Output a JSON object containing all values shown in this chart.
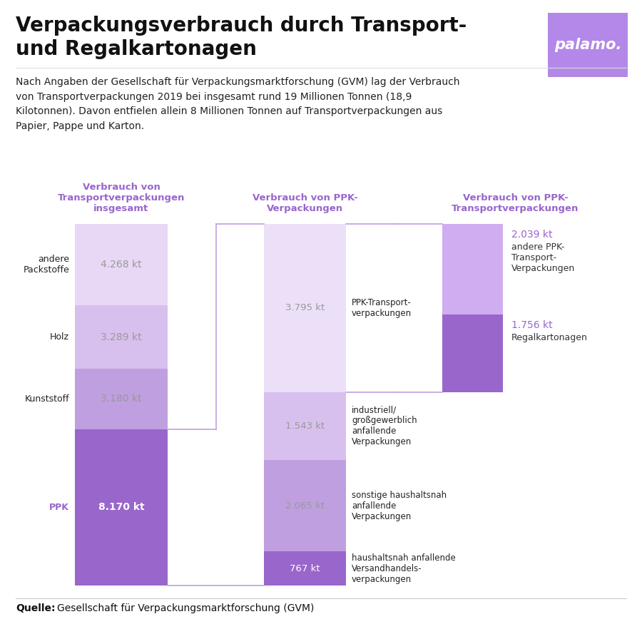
{
  "title_line1": "Verpackungsverbrauch durch Transport-",
  "title_line2": "und Regalkartonagen",
  "logo_text": "palamo.",
  "logo_bg": "#b388e8",
  "description": "Nach Angaben der Gesellschaft für Verpackungsmarktforschung (GVM) lag der Verbrauch\nvon Transportverpackungen 2019 bei insgesamt rund 19 Millionen Tonnen (18,9\nKilotonnen). Davon entfielen allein 8 Millionen Tonnen auf Transportverpackungen aus\nPapier, Pappe und Karton.",
  "source": "Gesellschaft für Verpackungsmarktforschung (GVM)",
  "col1_title": "Verbrauch von\nTransportverpackungen\ninsgesamt",
  "col2_title": "Verbrauch von PPK-\nVerpackungen",
  "col3_title": "Verbrauch von PPK-\nTransportverpackungen",
  "bar1_segments_top_to_bottom": [
    {
      "label": "andere\nPackstoffe",
      "value": 4.268,
      "color": "#e8d8f5",
      "text": "4.268 kt",
      "text_color": "#999999"
    },
    {
      "label": "Holz",
      "value": 3.289,
      "color": "#d8c0ee",
      "text": "3.289 kt",
      "text_color": "#999999"
    },
    {
      "label": "Kunststoff",
      "value": 3.18,
      "color": "#bf9fe0",
      "text": "3.180 kt",
      "text_color": "#999999"
    },
    {
      "label": "PPK",
      "value": 8.17,
      "color": "#9966cc",
      "text": "8.170 kt",
      "text_color": "#ffffff"
    }
  ],
  "bar2_segments_top_to_bottom": [
    {
      "label": "PPK-Transport-\nverpackungen",
      "value": 3.795,
      "color": "#ece0f8",
      "text": "3.795 kt",
      "text_color": "#999999"
    },
    {
      "label": "industriell/\ngroßgewerblich\nanfallende\nVerpackungen",
      "value": 1.543,
      "color": "#d8c0ee",
      "text": "1.543 kt",
      "text_color": "#999999"
    },
    {
      "label": "sonstige haushaltsnah\nanfallende\nVerpackungen",
      "value": 2.065,
      "color": "#bf9fe0",
      "text": "2.065 kt",
      "text_color": "#999999"
    },
    {
      "label": "haushaltsnah anfallende\nVersandhandels-\nverpackungen",
      "value": 0.767,
      "color": "#9966cc",
      "text": "767 kt",
      "text_color": "#ffffff"
    }
  ],
  "bar3_segments_top_to_bottom": [
    {
      "value": 2.039,
      "color": "#d0acf0",
      "kt_label": "2.039 kt",
      "kt_color": "#9966cc",
      "desc_label": "andere PPK-\nTransport-\nVerpackungen",
      "desc_color": "#333333"
    },
    {
      "value": 1.756,
      "color": "#9966cc",
      "kt_label": "1.756 kt",
      "kt_color": "#9966cc",
      "desc_label": "Regalkartonagen",
      "desc_color": "#333333"
    }
  ],
  "header_color": "#9966cc",
  "connector_color": "#c0a0e0",
  "bg_color": "#ffffff"
}
